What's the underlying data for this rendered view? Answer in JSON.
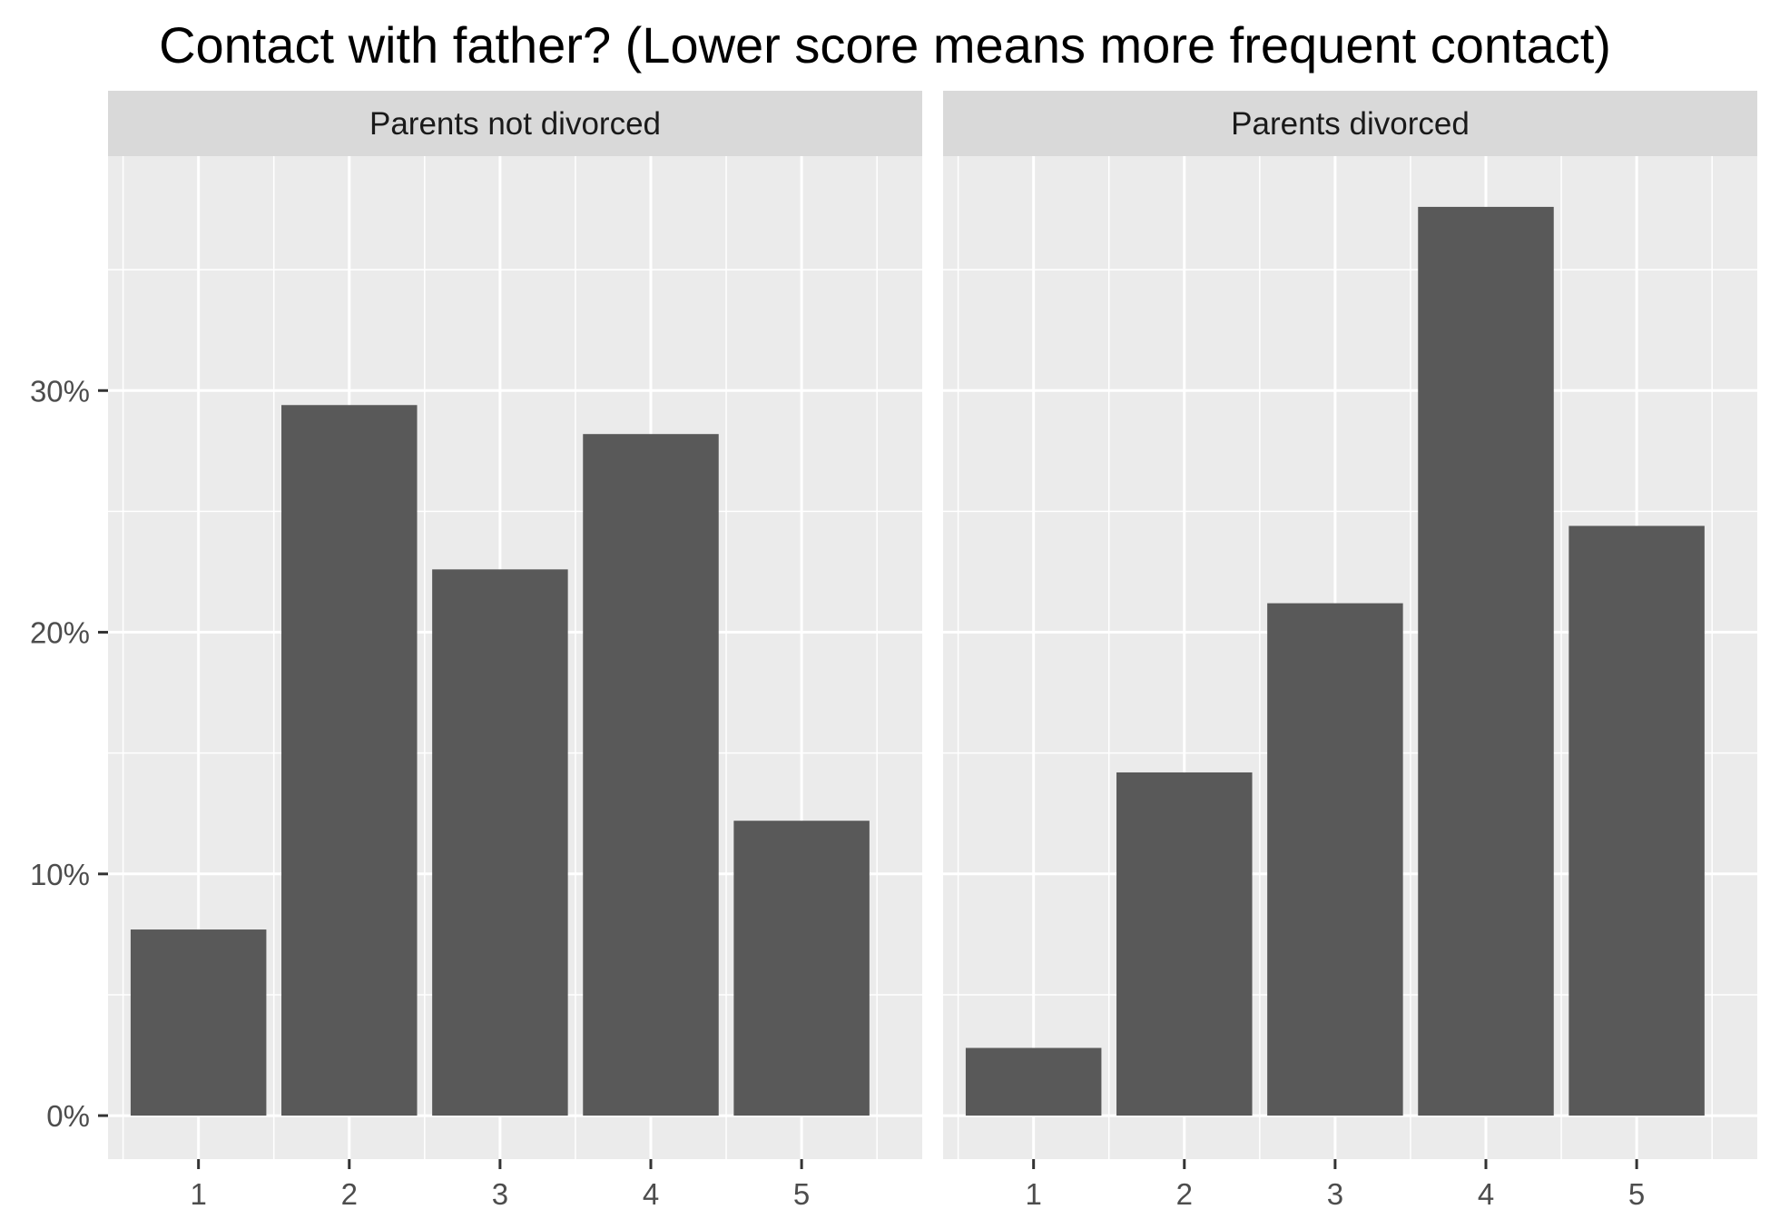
{
  "chart_data": {
    "type": "bar",
    "title": "Contact with father? (Lower score means more frequent contact)",
    "xlabel": "",
    "ylabel": "",
    "categories": [
      "1",
      "2",
      "3",
      "4",
      "5"
    ],
    "yticks": [
      {
        "value": 0,
        "label": "0%"
      },
      {
        "value": 10,
        "label": "10%"
      },
      {
        "value": 20,
        "label": "20%"
      },
      {
        "value": 30,
        "label": "30%"
      }
    ],
    "ylim": [
      -1.8,
      39.7
    ],
    "grid": true,
    "facets": [
      {
        "name": "Parents not divorced",
        "values": [
          7.7,
          29.4,
          22.6,
          28.2,
          12.2
        ]
      },
      {
        "name": "Parents divorced",
        "values": [
          2.8,
          14.2,
          21.2,
          37.6,
          24.4
        ]
      }
    ],
    "colors": {
      "bar": "#595959",
      "panel": "#ebebeb",
      "strip": "#d9d9d9",
      "grid": "#ffffff",
      "axis_text": "#4d4d4d"
    }
  }
}
